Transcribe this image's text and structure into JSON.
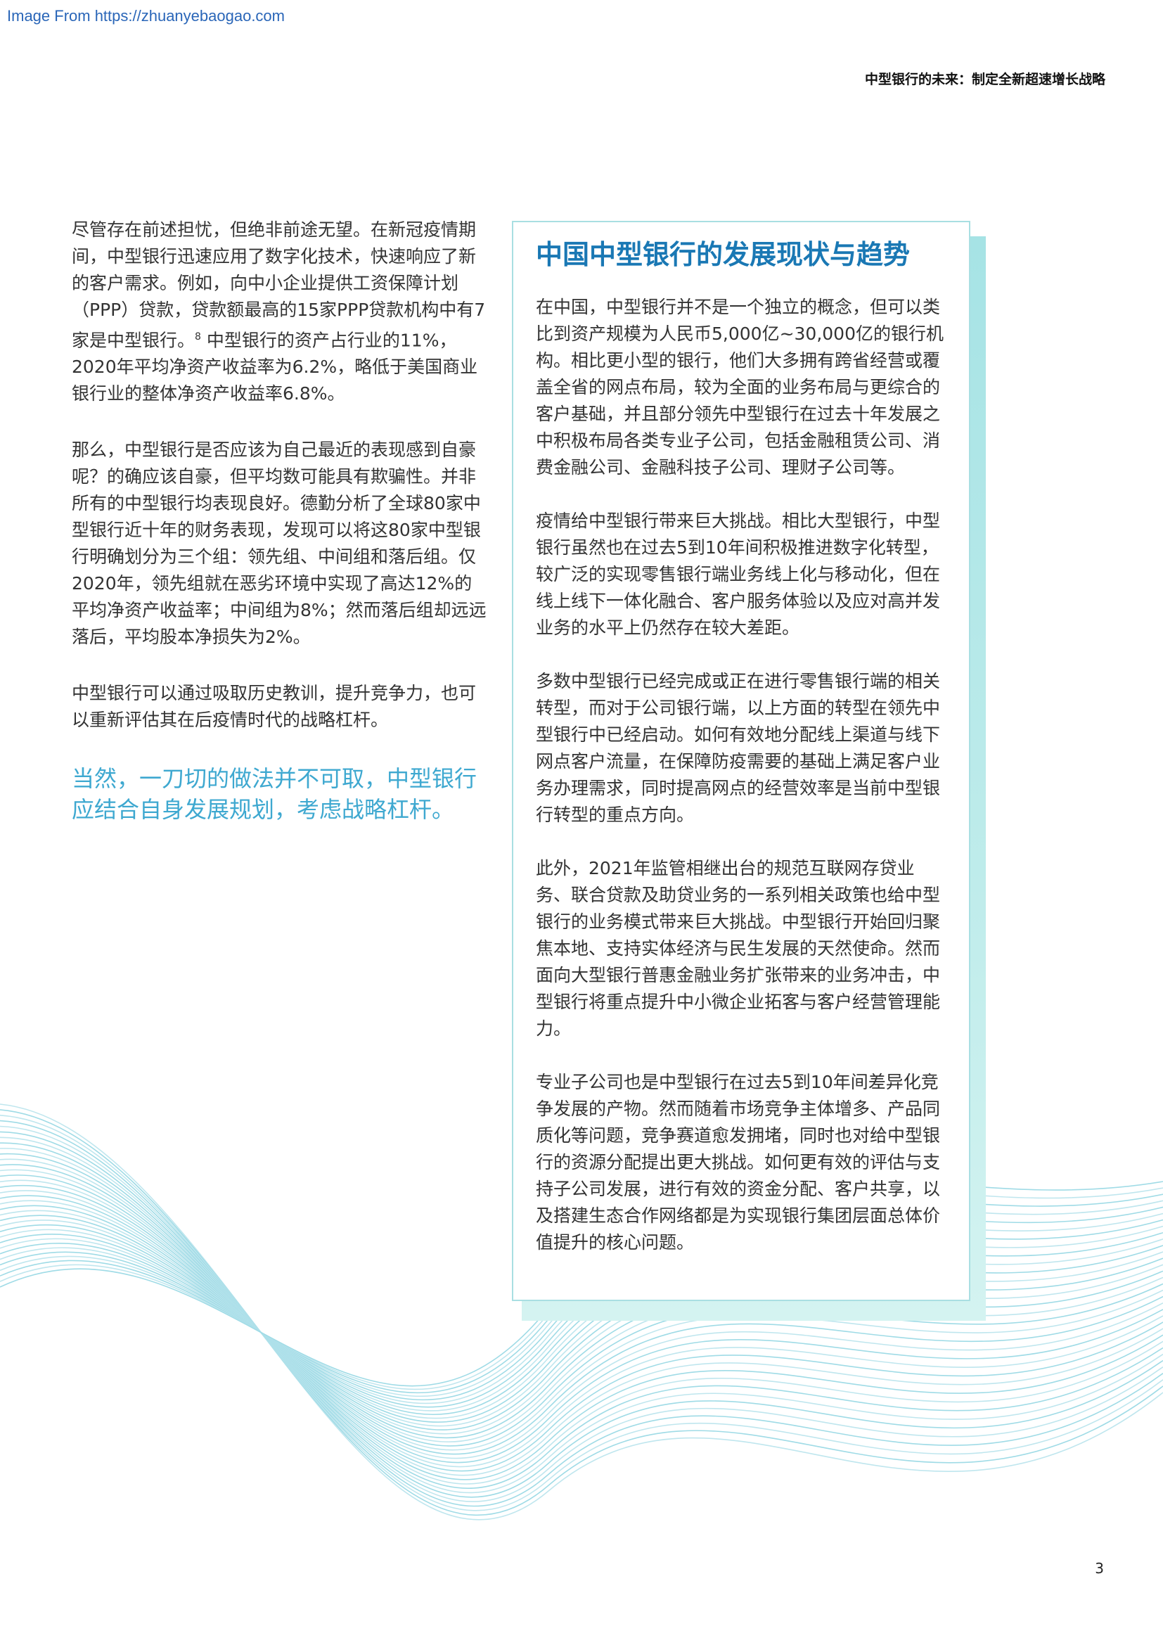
{
  "watermark": "Image From https://zhuanyebaogao.com",
  "header": {
    "title": "中型银行的未来：制定全新超速增长战略"
  },
  "left_column": {
    "p1": "尽管存在前述担忧，但绝非前途无望。在新冠疫情期间，中型银行迅速应用了数字化技术，快速响应了新的客户需求。例如，向中小企业提供工资保障计划（PPP）贷款，贷款额最高的15家PPP贷款机构中有7家是中型银行。",
    "p1_footnote": "8",
    "p1_tail": " 中型银行的资产占行业的11%，2020年平均净资产收益率为6.2%，略低于美国商业银行业的整体净资产收益率6.8%。",
    "p2": "那么，中型银行是否应该为自己最近的表现感到自豪呢？的确应该自豪，但平均数可能具有欺骗性。并非所有的中型银行均表现良好。德勤分析了全球80家中型银行近十年的财务表现，发现可以将这80家中型银行明确划分为三个组：领先组、中间组和落后组。仅2020年，领先组就在恶劣环境中实现了高达12%的平均净资产收益率；中间组为8%；然而落后组却远远落后，平均股本净损失为2%。",
    "p3": "中型银行可以通过吸取历史教训，提升竞争力，也可以重新评估其在后疫情时代的战略杠杆。",
    "quote": "当然，一刀切的做法并不可取，中型银行应结合自身发展规划，考虑战略杠杆。"
  },
  "sidebar": {
    "title": "中国中型银行的发展现状与趋势",
    "paragraphs": [
      "在中国，中型银行并不是一个独立的概念，但可以类比到资产规模为人民币5,000亿~30,000亿的银行机构。相比更小型的银行，他们大多拥有跨省经营或覆盖全省的网点布局，较为全面的业务布局与更综合的客户基础，并且部分领先中型银行在过去十年发展之中积极布局各类专业子公司，包括金融租赁公司、消费金融公司、金融科技子公司、理财子公司等。",
      "疫情给中型银行带来巨大挑战。相比大型银行，中型银行虽然也在过去5到10年间积极推进数字化转型，较广泛的实现零售银行端业务线上化与移动化，但在线上线下一体化融合、客户服务体验以及应对高并发业务的水平上仍然存在较大差距。",
      "多数中型银行已经完成或正在进行零售银行端的相关转型，而对于公司银行端，以上方面的转型在领先中型银行中已经启动。如何有效地分配线上渠道与线下网点客户流量，在保障防疫需要的基础上满足客户业务办理需求，同时提高网点的经营效率是当前中型银行转型的重点方向。",
      "此外，2021年监管相继出台的规范互联网存贷业务、联合贷款及助贷业务的一系列相关政策也给中型银行的业务模式带来巨大挑战。中型银行开始回归聚焦本地、支持实体经济与民生发展的天然使命。然而面向大型银行普惠金融业务扩张带来的业务冲击，中型银行将重点提升中小微企业拓客与客户经营管理能力。",
      "专业子公司也是中型银行在过去5到10年间差异化竞争发展的产物。然而随着市场竞争主体增多、产品同质化等问题，竞争赛道愈发拥堵，同时也对给中型银行的资源分配提出更大挑战。如何更有效的评估与支持子公司发展，进行有效的资金分配、客户共享，以及搭建生态合作网络都是为实现银行集团层面总体价值提升的核心问题。"
    ]
  },
  "page_number": "3"
}
